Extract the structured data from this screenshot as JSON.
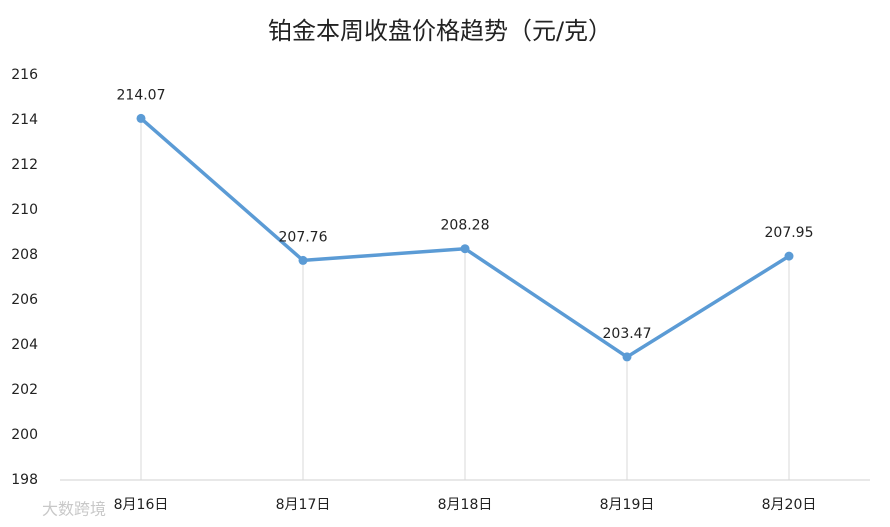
{
  "chart_data": {
    "type": "line",
    "title": "铂金本周收盘价格趋势（元/克）",
    "categories": [
      "8月16日",
      "8月17日",
      "8月18日",
      "8月19日",
      "8月20日"
    ],
    "values": [
      214.07,
      207.76,
      208.28,
      203.47,
      207.95
    ],
    "color": "#5b9bd5",
    "drop_lines": true,
    "ylim": [
      198,
      216
    ],
    "yticks": [
      198,
      200,
      202,
      204,
      206,
      208,
      210,
      212,
      214,
      216
    ],
    "watermark": "大数跨境"
  }
}
